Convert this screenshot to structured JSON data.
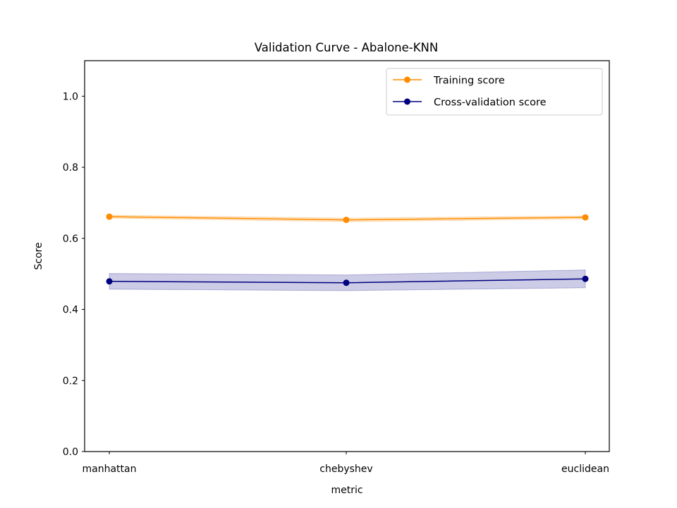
{
  "chart_data": {
    "type": "line",
    "title": "Validation Curve - Abalone-KNN",
    "xlabel": "metric",
    "ylabel": "Score",
    "categories": [
      "manhattan",
      "chebyshev",
      "euclidean"
    ],
    "ylim": [
      0.0,
      1.1
    ],
    "yticks": [
      0.0,
      0.2,
      0.4,
      0.6,
      0.8,
      1.0
    ],
    "ytick_labels": [
      "0.0",
      "0.2",
      "0.4",
      "0.6",
      "0.8",
      "1.0"
    ],
    "grid": false,
    "legend_position": "top-right",
    "series": [
      {
        "name": "Training score",
        "color": "#ff8c00",
        "values": [
          0.661,
          0.652,
          0.659
        ],
        "lower": [
          0.657,
          0.647,
          0.655
        ],
        "upper": [
          0.665,
          0.657,
          0.663
        ]
      },
      {
        "name": "Cross-validation score",
        "color": "#000080",
        "values": [
          0.479,
          0.475,
          0.486
        ],
        "lower": [
          0.457,
          0.453,
          0.461
        ],
        "upper": [
          0.501,
          0.497,
          0.511
        ]
      }
    ]
  }
}
